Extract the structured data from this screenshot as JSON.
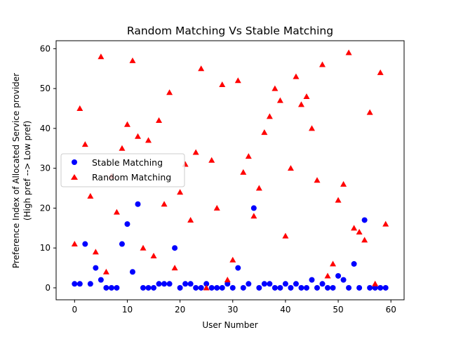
{
  "chart_data": {
    "type": "scatter",
    "title": "Random Matching Vs Stable Matching",
    "xlabel": "User Number",
    "ylabel_lines": [
      "Preference Index of Allocated Service provider",
      "(High pref --> Low pref)"
    ],
    "xlim": [
      -3.5,
      62.5
    ],
    "ylim": [
      -3,
      62
    ],
    "xticks": [
      0,
      10,
      20,
      30,
      40,
      50,
      60
    ],
    "yticks": [
      0,
      10,
      20,
      30,
      40,
      50,
      60
    ],
    "grid": false,
    "legend_position": "center-left",
    "series": [
      {
        "name": "Stable Matching",
        "marker": "circle",
        "color": "#0000ff",
        "points": [
          [
            0,
            1
          ],
          [
            1,
            1
          ],
          [
            2,
            11
          ],
          [
            3,
            1
          ],
          [
            4,
            5
          ],
          [
            5,
            2
          ],
          [
            6,
            0
          ],
          [
            7,
            0
          ],
          [
            8,
            0
          ],
          [
            9,
            11
          ],
          [
            10,
            16
          ],
          [
            11,
            4
          ],
          [
            12,
            21
          ],
          [
            13,
            0
          ],
          [
            14,
            0
          ],
          [
            15,
            0
          ],
          [
            16,
            1
          ],
          [
            17,
            1
          ],
          [
            18,
            1
          ],
          [
            19,
            10
          ],
          [
            20,
            0
          ],
          [
            21,
            1
          ],
          [
            22,
            1
          ],
          [
            23,
            0
          ],
          [
            24,
            0
          ],
          [
            25,
            1
          ],
          [
            26,
            0
          ],
          [
            27,
            0
          ],
          [
            28,
            0
          ],
          [
            29,
            1
          ],
          [
            30,
            0
          ],
          [
            31,
            5
          ],
          [
            32,
            0
          ],
          [
            33,
            1
          ],
          [
            34,
            20
          ],
          [
            35,
            0
          ],
          [
            36,
            1
          ],
          [
            37,
            1
          ],
          [
            38,
            0
          ],
          [
            39,
            0
          ],
          [
            40,
            1
          ],
          [
            41,
            0
          ],
          [
            42,
            1
          ],
          [
            43,
            0
          ],
          [
            44,
            0
          ],
          [
            45,
            2
          ],
          [
            46,
            0
          ],
          [
            47,
            1
          ],
          [
            48,
            0
          ],
          [
            49,
            0
          ],
          [
            50,
            3
          ],
          [
            51,
            2
          ],
          [
            52,
            0
          ],
          [
            53,
            6
          ],
          [
            54,
            0
          ],
          [
            55,
            17
          ],
          [
            56,
            0
          ],
          [
            57,
            0
          ],
          [
            58,
            0
          ],
          [
            59,
            0
          ]
        ]
      },
      {
        "name": "Random Matching",
        "marker": "triangle",
        "color": "#ff0000",
        "points": [
          [
            0,
            11
          ],
          [
            1,
            45
          ],
          [
            2,
            36
          ],
          [
            3,
            23
          ],
          [
            4,
            9
          ],
          [
            5,
            58
          ],
          [
            6,
            4
          ],
          [
            7,
            28
          ],
          [
            8,
            19
          ],
          [
            9,
            35
          ],
          [
            10,
            41
          ],
          [
            11,
            57
          ],
          [
            12,
            38
          ],
          [
            13,
            10
          ],
          [
            14,
            37
          ],
          [
            15,
            8
          ],
          [
            16,
            42
          ],
          [
            17,
            21
          ],
          [
            18,
            49
          ],
          [
            19,
            5
          ],
          [
            20,
            24
          ],
          [
            21,
            31
          ],
          [
            22,
            17
          ],
          [
            23,
            34
          ],
          [
            24,
            55
          ],
          [
            25,
            0
          ],
          [
            26,
            32
          ],
          [
            27,
            20
          ],
          [
            28,
            51
          ],
          [
            29,
            2
          ],
          [
            30,
            7
          ],
          [
            31,
            52
          ],
          [
            32,
            29
          ],
          [
            33,
            33
          ],
          [
            34,
            18
          ],
          [
            35,
            25
          ],
          [
            36,
            39
          ],
          [
            37,
            43
          ],
          [
            38,
            50
          ],
          [
            39,
            47
          ],
          [
            40,
            13
          ],
          [
            41,
            30
          ],
          [
            42,
            53
          ],
          [
            43,
            46
          ],
          [
            44,
            48
          ],
          [
            45,
            40
          ],
          [
            46,
            27
          ],
          [
            47,
            56
          ],
          [
            48,
            3
          ],
          [
            49,
            6
          ],
          [
            50,
            22
          ],
          [
            51,
            26
          ],
          [
            52,
            59
          ],
          [
            53,
            15
          ],
          [
            54,
            14
          ],
          [
            55,
            12
          ],
          [
            56,
            44
          ],
          [
            57,
            1
          ],
          [
            58,
            54
          ],
          [
            59,
            16
          ]
        ]
      }
    ]
  }
}
